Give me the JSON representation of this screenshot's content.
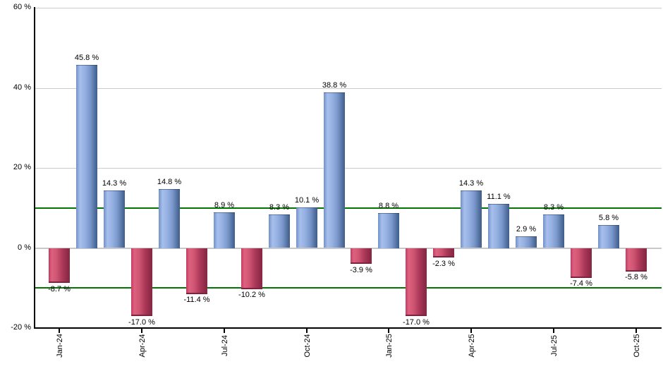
{
  "chart_data": {
    "type": "bar",
    "title": "",
    "xlabel": "",
    "ylabel": "",
    "unit": "%",
    "categories": [
      "Jan-24",
      "Feb-24",
      "Mar-24",
      "Apr-24",
      "May-24",
      "Jun-24",
      "Jul-24",
      "Aug-24",
      "Sep-24",
      "Oct-24",
      "Nov-24",
      "Dec-24",
      "Jan-25",
      "Feb-25",
      "Mar-25",
      "Apr-25",
      "May-25",
      "Jun-25",
      "Jul-25",
      "Aug-25",
      "Sep-25",
      "Oct-25"
    ],
    "values": [
      -8.7,
      45.8,
      14.3,
      -17.0,
      14.8,
      -11.4,
      8.9,
      -10.2,
      8.3,
      10.1,
      38.8,
      -3.9,
      8.8,
      -17.0,
      -2.3,
      14.3,
      11.1,
      2.9,
      8.3,
      -7.4,
      5.8,
      -5.8
    ],
    "value_label_suffix": " %",
    "ylim": [
      -20,
      60
    ],
    "y_ticks": [
      {
        "value": 60,
        "label": "60 %"
      },
      {
        "value": 40,
        "label": "40 %"
      },
      {
        "value": 20,
        "label": "20 %"
      },
      {
        "value": 0,
        "label": "0 %"
      },
      {
        "value": -20,
        "label": "-20 %"
      }
    ],
    "gray_gridline_values": [
      60,
      40,
      20
    ],
    "zero_line_value": 0,
    "green_reference_line_values": [
      10,
      -10
    ],
    "x_tick_every_n_months": 3,
    "x_tick_labels": [
      "Jan-24",
      "Apr-24",
      "Jul-24",
      "Oct-24",
      "Jan-25",
      "Apr-25",
      "Jul-25",
      "Oct-25"
    ],
    "legend": "none",
    "grid": "horizontal-only",
    "colors": {
      "positive_bar_gradient": [
        "#7191c9",
        "#a6bfec",
        "#96b1e2",
        "#7b98cc",
        "#52719f",
        "#3f5c8c"
      ],
      "negative_bar_gradient": [
        "#c43a5f",
        "#dd6280",
        "#cf5572",
        "#b03b5c",
        "#8f2b48",
        "#872844"
      ],
      "gridline_gray": "#cccccc",
      "zero_line_gray": "#c8c8c8",
      "reference_green": "#007700",
      "axis_black": "#000000",
      "label_text": "#000000",
      "background": "#ffffff"
    }
  }
}
